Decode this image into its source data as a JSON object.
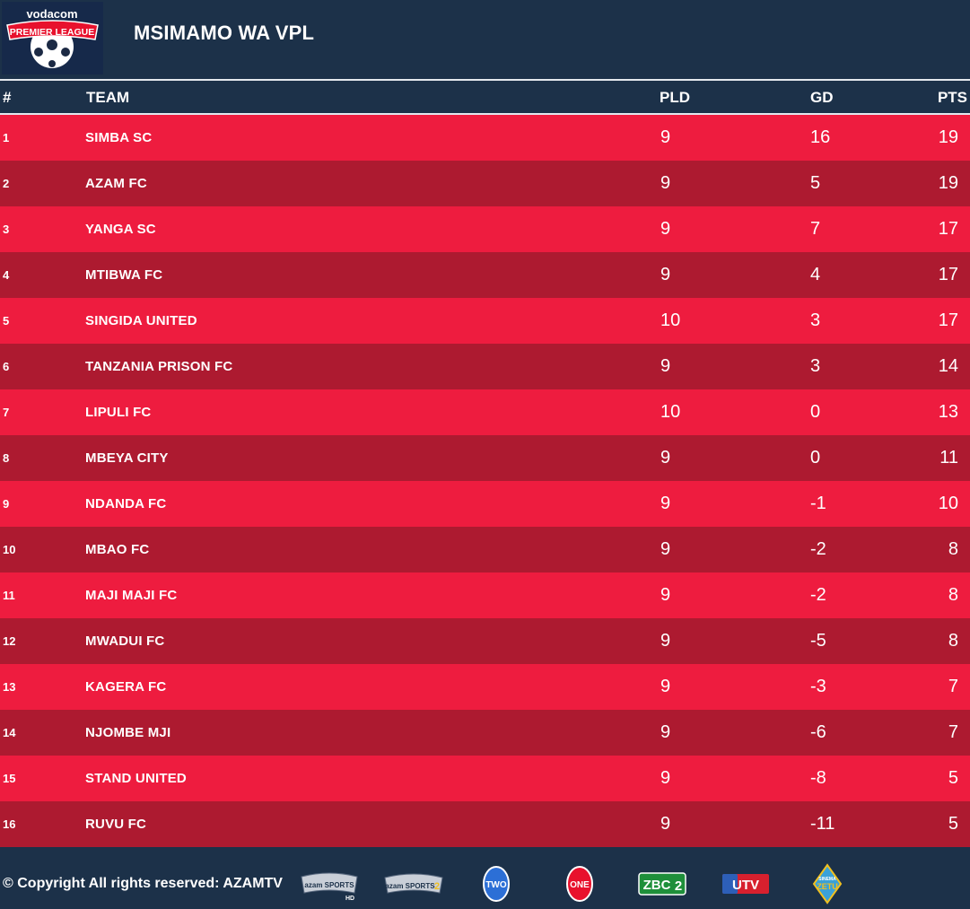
{
  "header": {
    "title": "MSIMAMO WA VPL",
    "logo": {
      "brand": "vodacom",
      "league": "PREMIER LEAGUE",
      "icon": "football-icon",
      "color": "#e8112d"
    }
  },
  "table": {
    "columns": {
      "pos": "#",
      "team": "TEAM",
      "pld": "PLD",
      "gd": "GD",
      "pts": "PTS"
    },
    "rows": [
      {
        "pos": "1",
        "team": "SIMBA SC",
        "pld": "9",
        "gd": "16",
        "pts": "19"
      },
      {
        "pos": "2",
        "team": "AZAM FC",
        "pld": "9",
        "gd": "5",
        "pts": "19"
      },
      {
        "pos": "3",
        "team": "YANGA SC",
        "pld": "9",
        "gd": "7",
        "pts": "17"
      },
      {
        "pos": "4",
        "team": "MTIBWA FC",
        "pld": "9",
        "gd": "4",
        "pts": "17"
      },
      {
        "pos": "5",
        "team": "SINGIDA UNITED",
        "pld": "10",
        "gd": "3",
        "pts": "17"
      },
      {
        "pos": "6",
        "team": "TANZANIA PRISON FC",
        "pld": "9",
        "gd": "3",
        "pts": "14"
      },
      {
        "pos": "7",
        "team": "LIPULI FC",
        "pld": "10",
        "gd": "0",
        "pts": "13"
      },
      {
        "pos": "8",
        "team": "MBEYA CITY",
        "pld": "9",
        "gd": "0",
        "pts": "11"
      },
      {
        "pos": "9",
        "team": "NDANDA FC",
        "pld": "9",
        "gd": "-1",
        "pts": "10"
      },
      {
        "pos": "10",
        "team": "MBAO FC",
        "pld": "9",
        "gd": "-2",
        "pts": "8"
      },
      {
        "pos": "11",
        "team": "MAJI MAJI FC",
        "pld": "9",
        "gd": "-2",
        "pts": "8"
      },
      {
        "pos": "12",
        "team": "MWADUI FC",
        "pld": "9",
        "gd": "-5",
        "pts": "8"
      },
      {
        "pos": "13",
        "team": "KAGERA FC",
        "pld": "9",
        "gd": "-3",
        "pts": "7"
      },
      {
        "pos": "14",
        "team": "NJOMBE MJI",
        "pld": "9",
        "gd": "-6",
        "pts": "7"
      },
      {
        "pos": "15",
        "team": "STAND UNITED",
        "pld": "9",
        "gd": "-8",
        "pts": "5"
      },
      {
        "pos": "16",
        "team": "RUVU FC",
        "pld": "9",
        "gd": "-11",
        "pts": "5"
      }
    ]
  },
  "footer": {
    "copyright": "© Copyright All rights reserved: AZAMTV",
    "channels": [
      {
        "icon": "azam-sports-hd-logo",
        "label": "azam SPORTS",
        "sub": "HD"
      },
      {
        "icon": "azam-sports-2-logo",
        "label": "azam SPORTS",
        "sub": "2"
      },
      {
        "icon": "azam-two-logo",
        "label": "TWO"
      },
      {
        "icon": "azam-one-logo",
        "label": "ONE"
      },
      {
        "icon": "zbc2-logo",
        "label": "ZBC",
        "sub": "2"
      },
      {
        "icon": "utv-logo",
        "label": "UTV"
      },
      {
        "icon": "sinema-zetu-logo",
        "label": "ZETU",
        "sub": "SINEMA"
      }
    ]
  },
  "colors": {
    "navy": "#1c3149",
    "row_light": "#ee1c3f",
    "row_dark": "#ad1a30"
  }
}
